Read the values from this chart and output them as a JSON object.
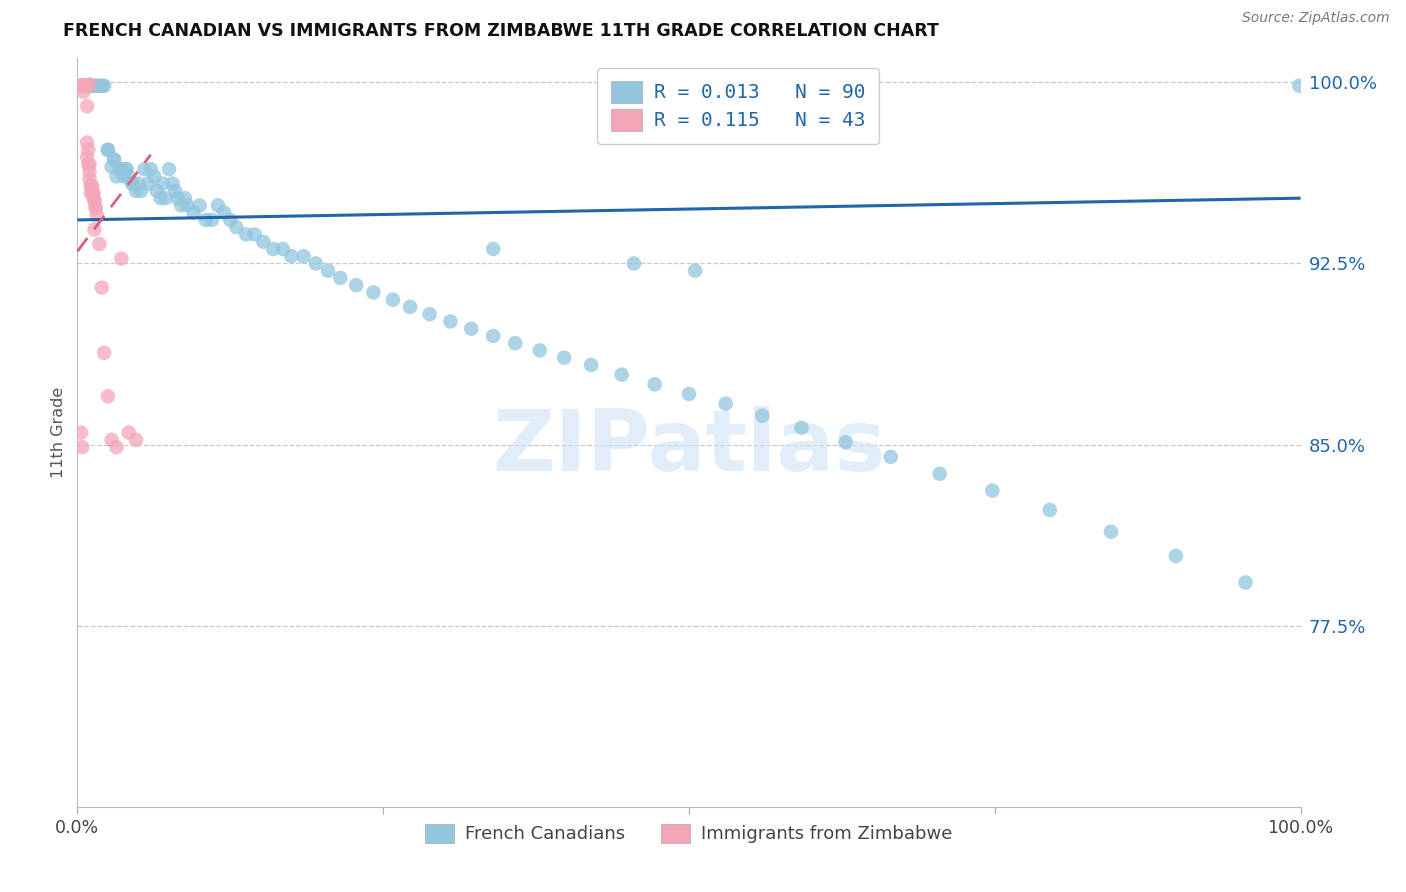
{
  "title": "FRENCH CANADIAN VS IMMIGRANTS FROM ZIMBABWE 11TH GRADE CORRELATION CHART",
  "source": "Source: ZipAtlas.com",
  "ylabel": "11th Grade",
  "blue_R": "0.013",
  "blue_N": "90",
  "pink_R": "0.115",
  "pink_N": "43",
  "blue_color": "#92c5de",
  "pink_color": "#f4a6b8",
  "line_blue": "#2166ac",
  "line_pink": "#d6627a",
  "background_color": "#ffffff",
  "legend_label_blue": "French Canadians",
  "legend_label_pink": "Immigrants from Zimbabwe",
  "xlim": [
    0.0,
    1.0
  ],
  "ylim": [
    0.7,
    1.01
  ],
  "yticks": [
    0.775,
    0.85,
    0.925,
    1.0
  ],
  "ytick_labels": [
    "77.5%",
    "85.0%",
    "92.5%",
    "100.0%"
  ],
  "blue_x": [
    0.005,
    0.01,
    0.01,
    0.012,
    0.015,
    0.015,
    0.018,
    0.02,
    0.02,
    0.022,
    0.025,
    0.025,
    0.028,
    0.03,
    0.03,
    0.032,
    0.035,
    0.035,
    0.038,
    0.04,
    0.04,
    0.042,
    0.045,
    0.045,
    0.048,
    0.05,
    0.052,
    0.055,
    0.058,
    0.06,
    0.063,
    0.065,
    0.068,
    0.07,
    0.072,
    0.075,
    0.078,
    0.08,
    0.082,
    0.085,
    0.088,
    0.09,
    0.095,
    0.1,
    0.105,
    0.11,
    0.115,
    0.12,
    0.125,
    0.13,
    0.138,
    0.145,
    0.152,
    0.16,
    0.168,
    0.175,
    0.185,
    0.195,
    0.205,
    0.215,
    0.228,
    0.242,
    0.258,
    0.272,
    0.288,
    0.305,
    0.322,
    0.34,
    0.358,
    0.378,
    0.398,
    0.42,
    0.445,
    0.472,
    0.5,
    0.53,
    0.56,
    0.592,
    0.628,
    0.665,
    0.705,
    0.748,
    0.795,
    0.845,
    0.898,
    0.955,
    0.34,
    0.455,
    0.505,
    0.999
  ],
  "blue_y": [
    0.9985,
    0.9985,
    0.9985,
    0.9985,
    0.9985,
    0.9985,
    0.9985,
    0.9985,
    0.9985,
    0.9985,
    0.972,
    0.972,
    0.965,
    0.968,
    0.968,
    0.961,
    0.964,
    0.964,
    0.961,
    0.964,
    0.964,
    0.961,
    0.958,
    0.958,
    0.955,
    0.958,
    0.955,
    0.964,
    0.958,
    0.964,
    0.961,
    0.955,
    0.952,
    0.958,
    0.952,
    0.964,
    0.958,
    0.955,
    0.952,
    0.949,
    0.952,
    0.949,
    0.946,
    0.949,
    0.943,
    0.943,
    0.949,
    0.946,
    0.943,
    0.94,
    0.937,
    0.937,
    0.934,
    0.931,
    0.931,
    0.928,
    0.928,
    0.925,
    0.922,
    0.919,
    0.916,
    0.913,
    0.91,
    0.907,
    0.904,
    0.901,
    0.898,
    0.895,
    0.892,
    0.889,
    0.886,
    0.883,
    0.879,
    0.875,
    0.871,
    0.867,
    0.862,
    0.857,
    0.851,
    0.845,
    0.838,
    0.831,
    0.823,
    0.814,
    0.804,
    0.793,
    0.931,
    0.925,
    0.922,
    0.9985
  ],
  "pink_x": [
    0.002,
    0.003,
    0.004,
    0.004,
    0.005,
    0.005,
    0.006,
    0.006,
    0.007,
    0.007,
    0.008,
    0.008,
    0.009,
    0.009,
    0.01,
    0.01,
    0.01,
    0.011,
    0.011,
    0.012,
    0.012,
    0.013,
    0.013,
    0.014,
    0.014,
    0.015,
    0.015,
    0.016,
    0.018,
    0.02,
    0.022,
    0.025,
    0.028,
    0.032,
    0.036,
    0.042,
    0.048,
    0.005,
    0.008,
    0.01,
    0.003,
    0.004,
    0.014
  ],
  "pink_y": [
    0.9985,
    0.9985,
    0.9985,
    0.9985,
    0.9985,
    0.9985,
    0.9985,
    0.9985,
    0.9985,
    0.9985,
    0.975,
    0.969,
    0.972,
    0.966,
    0.966,
    0.963,
    0.96,
    0.957,
    0.954,
    0.957,
    0.957,
    0.954,
    0.954,
    0.951,
    0.951,
    0.948,
    0.948,
    0.945,
    0.933,
    0.915,
    0.888,
    0.87,
    0.852,
    0.849,
    0.927,
    0.855,
    0.852,
    0.996,
    0.99,
    0.999,
    0.855,
    0.849,
    0.939
  ],
  "blue_trend_x": [
    0.0,
    1.0
  ],
  "blue_trend_y": [
    0.943,
    0.952
  ],
  "pink_trend_x": [
    0.0,
    0.06
  ],
  "pink_trend_y": [
    0.93,
    0.97
  ]
}
